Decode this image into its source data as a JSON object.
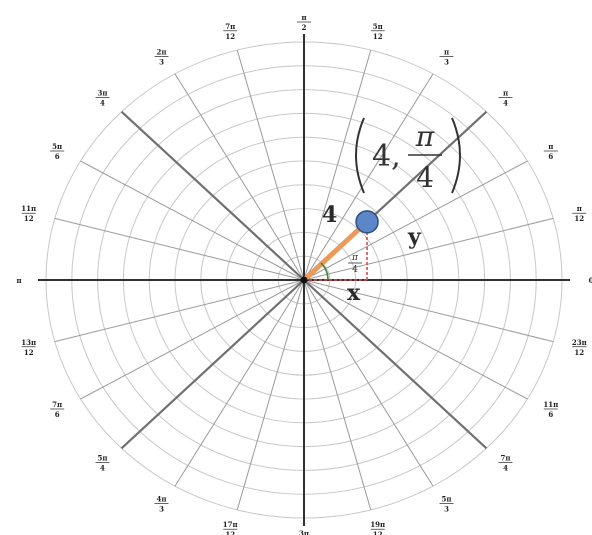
{
  "diagram": {
    "rings": 10,
    "spoke_step_deg": 15,
    "colors": {
      "grid_ring": "#c8c8c8",
      "spoke": "#9a9a9a",
      "major_spoke": "#707070",
      "axis": "#303030",
      "radius_segment": "#ec9a5a",
      "point_fill": "#5b86c8",
      "point_stroke": "#2f4f80",
      "dashed_projection": "#e04848",
      "angle_arc": "#3a8a3a"
    },
    "point": {
      "r": 4,
      "theta_deg": 45,
      "label_parts": [
        "4,",
        "π",
        "4"
      ]
    },
    "radius_label": "4",
    "x_label": "x",
    "y_label": "y",
    "angle_label": [
      "π",
      "4"
    ],
    "angle_labels": [
      {
        "deg": 0,
        "num": "π",
        "den": "12",
        "spoke_deg": 15
      },
      {
        "deg": 30,
        "num": "π",
        "den": "6"
      },
      {
        "deg": 45,
        "num": "π",
        "den": "4"
      },
      {
        "deg": 60,
        "num": "π",
        "den": "3"
      },
      {
        "deg": 75,
        "num": "5π",
        "den": "12"
      },
      {
        "deg": 90,
        "num": "π",
        "den": "2"
      },
      {
        "deg": 105,
        "num": "7π",
        "den": "12"
      },
      {
        "deg": 120,
        "num": "2π",
        "den": "3"
      },
      {
        "deg": 135,
        "num": "3π",
        "den": "4"
      },
      {
        "deg": 150,
        "num": "5π",
        "den": "6"
      },
      {
        "deg": 165,
        "num": "11π",
        "den": "12"
      },
      {
        "deg": 180,
        "num": "π",
        "den": ""
      },
      {
        "deg": 195,
        "num": "13π",
        "den": "12"
      },
      {
        "deg": 210,
        "num": "7π",
        "den": "6"
      },
      {
        "deg": 225,
        "num": "5π",
        "den": "4"
      },
      {
        "deg": 240,
        "num": "4π",
        "den": "3"
      },
      {
        "deg": 255,
        "num": "17π",
        "den": "12"
      },
      {
        "deg": 270,
        "num": "3π",
        "den": "2"
      },
      {
        "deg": 285,
        "num": "19π",
        "den": "12"
      },
      {
        "deg": 300,
        "num": "5π",
        "den": "3"
      },
      {
        "deg": 315,
        "num": "7π",
        "den": "4"
      },
      {
        "deg": 330,
        "num": "11π",
        "den": "6"
      },
      {
        "deg": 345,
        "num": "23π",
        "den": "12"
      },
      {
        "deg": 360,
        "num": "0",
        "den": ""
      }
    ]
  }
}
